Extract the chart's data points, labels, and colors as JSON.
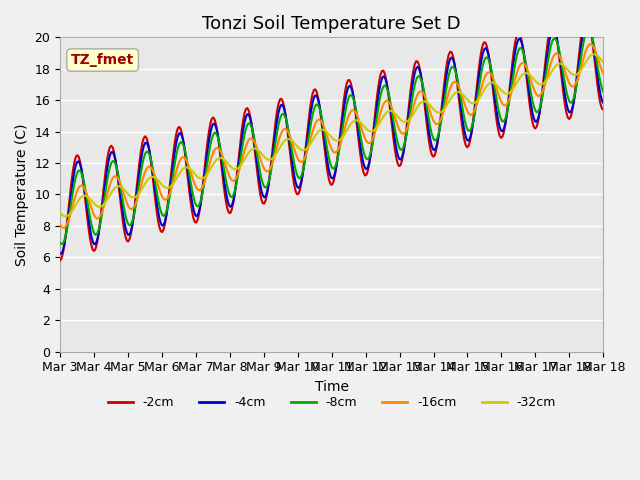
{
  "title": "Tonzi Soil Temperature Set D",
  "xlabel": "Time",
  "ylabel": "Soil Temperature (C)",
  "ylim": [
    0,
    20
  ],
  "yticks": [
    0,
    2,
    4,
    6,
    8,
    10,
    12,
    14,
    16,
    18,
    20
  ],
  "xtick_labels": [
    "Mar 3",
    "Mar 4",
    "Mar 5",
    "Mar 6",
    "Mar 7",
    "Mar 8",
    "Mar 9",
    "Mar 10",
    "Mar 11",
    "Mar 12",
    "Mar 13",
    "Mar 14",
    "Mar 15",
    "Mar 16",
    "Mar 17",
    "Mar 18"
  ],
  "series": {
    "-2cm": {
      "color": "#cc0000",
      "linewidth": 1.5
    },
    "-4cm": {
      "color": "#0000cc",
      "linewidth": 1.5
    },
    "-8cm": {
      "color": "#00aa00",
      "linewidth": 1.5
    },
    "-16cm": {
      "color": "#ff8800",
      "linewidth": 1.5
    },
    "-32cm": {
      "color": "#cccc00",
      "linewidth": 1.5
    }
  },
  "annotation_text": "TZ_fmet",
  "annotation_color": "#990000",
  "annotation_bg": "#ffffcc",
  "background_color": "#e8e8e8",
  "plot_bg": "#e8e8e8",
  "grid_color": "#ffffff",
  "title_fontsize": 13,
  "label_fontsize": 10,
  "tick_fontsize": 9
}
